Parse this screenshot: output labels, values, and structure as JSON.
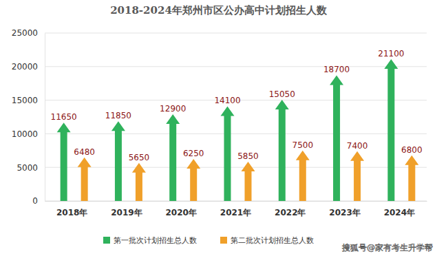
{
  "chart_data": {
    "type": "bar",
    "title": "2018-2024年郑州市区公办高中计划招生人数",
    "categories": [
      "2018年",
      "2019年",
      "2020年",
      "2021年",
      "2022年",
      "2023年",
      "2024年"
    ],
    "series": [
      {
        "name": "第一批次计划招生总人数",
        "color": "#2fb25c",
        "values": [
          11650,
          11850,
          12900,
          14100,
          15050,
          18700,
          21100
        ]
      },
      {
        "name": "第二批次计划招生总人数",
        "color": "#f0a02a",
        "values": [
          6480,
          5650,
          6250,
          5850,
          7500,
          7400,
          6800
        ]
      }
    ],
    "ylim": [
      0,
      25000
    ],
    "yticks": [
      0,
      5000,
      10000,
      15000,
      20000,
      25000
    ],
    "grid": true,
    "legend": "bottom",
    "data_labels": true,
    "annotations": [
      "搜狐号@家有考生升学帮"
    ]
  }
}
